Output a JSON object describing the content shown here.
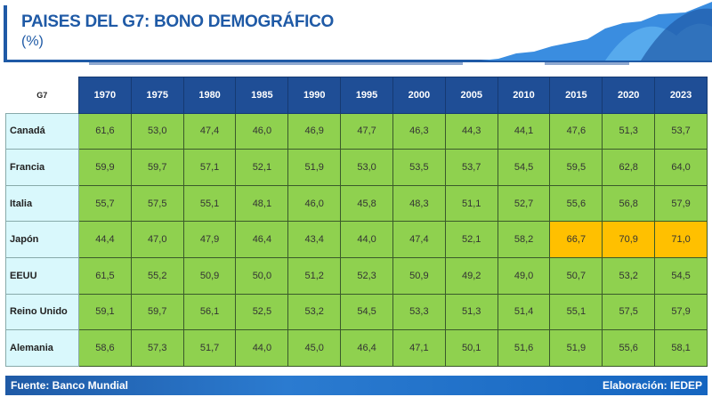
{
  "header": {
    "title": "PAISES DEL G7: BONO DEMOGRÁFICO",
    "subtitle": "(%)"
  },
  "chart_data": {
    "type": "table",
    "title": "PAISES DEL G7: BONO DEMOGRÁFICO",
    "unit": "(%)",
    "corner_label": "G7",
    "columns": [
      "1970",
      "1975",
      "1980",
      "1985",
      "1990",
      "1995",
      "2000",
      "2005",
      "2010",
      "2015",
      "2020",
      "2023"
    ],
    "rows": [
      {
        "name": "Canadá",
        "values": [
          "61,6",
          "53,0",
          "47,4",
          "46,0",
          "46,9",
          "47,7",
          "46,3",
          "44,3",
          "44,1",
          "47,6",
          "51,3",
          "53,7"
        ]
      },
      {
        "name": "Francia",
        "values": [
          "59,9",
          "59,7",
          "57,1",
          "52,1",
          "51,9",
          "53,0",
          "53,5",
          "53,7",
          "54,5",
          "59,5",
          "62,8",
          "64,0"
        ]
      },
      {
        "name": "Italia",
        "values": [
          "55,7",
          "57,5",
          "55,1",
          "48,1",
          "46,0",
          "45,8",
          "48,3",
          "51,1",
          "52,7",
          "55,6",
          "56,8",
          "57,9"
        ]
      },
      {
        "name": "Japón",
        "values": [
          "44,4",
          "47,0",
          "47,9",
          "46,4",
          "43,4",
          "44,0",
          "47,4",
          "52,1",
          "58,2",
          "66,7",
          "70,9",
          "71,0"
        ],
        "highlight": [
          9,
          10,
          11
        ]
      },
      {
        "name": "EEUU",
        "values": [
          "61,5",
          "55,2",
          "50,9",
          "50,0",
          "51,2",
          "52,3",
          "50,9",
          "49,2",
          "49,0",
          "50,7",
          "53,2",
          "54,5"
        ]
      },
      {
        "name": "Reino Unido",
        "values": [
          "59,1",
          "59,7",
          "56,1",
          "52,5",
          "53,2",
          "54,5",
          "53,3",
          "51,3",
          "51,4",
          "55,1",
          "57,5",
          "57,9"
        ]
      },
      {
        "name": "Alemania",
        "values": [
          "58,6",
          "57,3",
          "51,7",
          "44,0",
          "45,0",
          "46,4",
          "47,1",
          "50,1",
          "51,6",
          "51,9",
          "55,6",
          "58,1"
        ]
      }
    ],
    "colors": {
      "header": "#1f4e96",
      "cell": "#8fd14f",
      "highlight": "#ffc000",
      "name_cell": "#d9f8fc"
    }
  },
  "footer": {
    "source": "Fuente: Banco Mundial",
    "credit": "Elaboración: IEDEP"
  }
}
